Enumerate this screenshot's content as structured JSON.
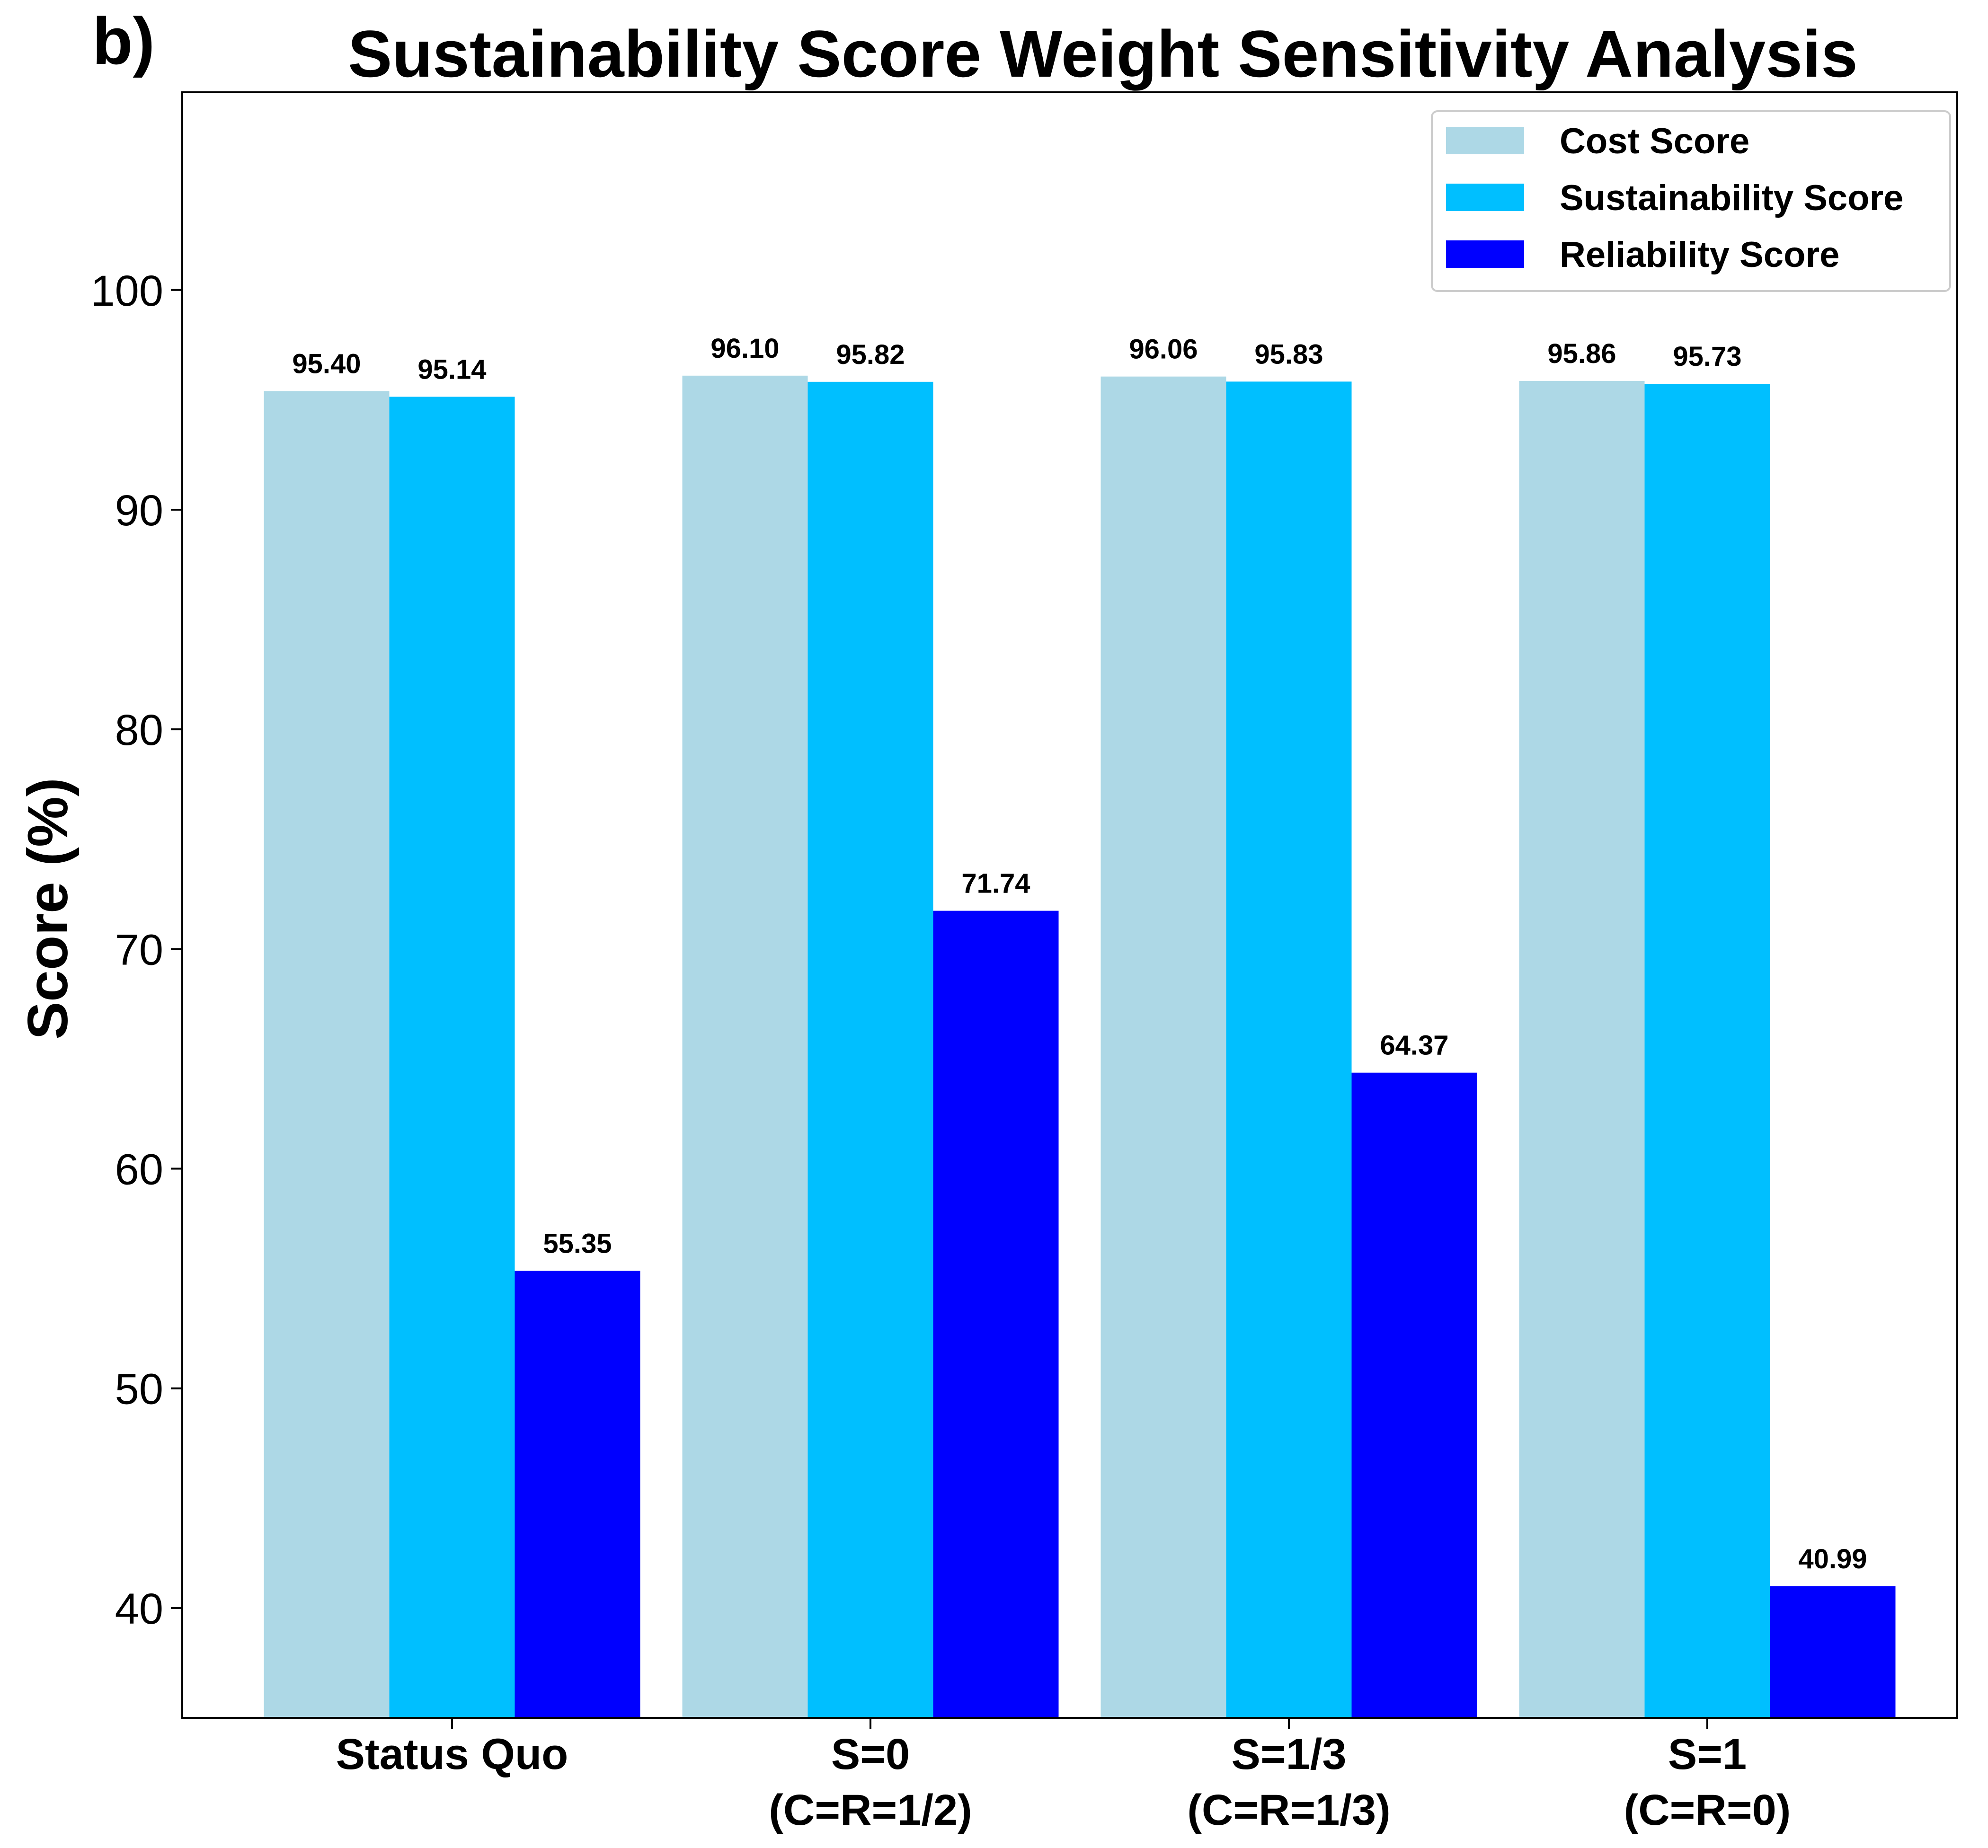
{
  "panel_label": "b)",
  "chart_data": {
    "type": "bar",
    "title": "Sustainability Score Weight Sensitivity Analysis",
    "xlabel": "",
    "ylabel": "Score (%)",
    "ylim": [
      35,
      109
    ],
    "yticks": [
      40,
      50,
      60,
      70,
      80,
      90,
      100
    ],
    "categories": [
      [
        "Status Quo"
      ],
      [
        "S=0",
        "(C=R=1/2)"
      ],
      [
        "S=1/3",
        "(C=R=1/3)"
      ],
      [
        "S=1",
        "(C=R=0)"
      ]
    ],
    "series": [
      {
        "name": "Cost Score",
        "color": "#add8e6",
        "values": [
          95.4,
          96.1,
          96.06,
          95.86
        ]
      },
      {
        "name": "Sustainability Score",
        "color": "#00bfff",
        "values": [
          95.14,
          95.82,
          95.83,
          95.73
        ]
      },
      {
        "name": "Reliability Score",
        "color": "#0000ff",
        "values": [
          55.35,
          71.74,
          64.37,
          40.99
        ]
      }
    ],
    "data_labels": [
      [
        "95.40",
        "96.10",
        "96.06",
        "95.86"
      ],
      [
        "95.14",
        "95.82",
        "95.83",
        "95.73"
      ],
      [
        "55.35",
        "71.74",
        "64.37",
        "40.99"
      ]
    ],
    "legend_position": "top-right",
    "grid": false
  }
}
